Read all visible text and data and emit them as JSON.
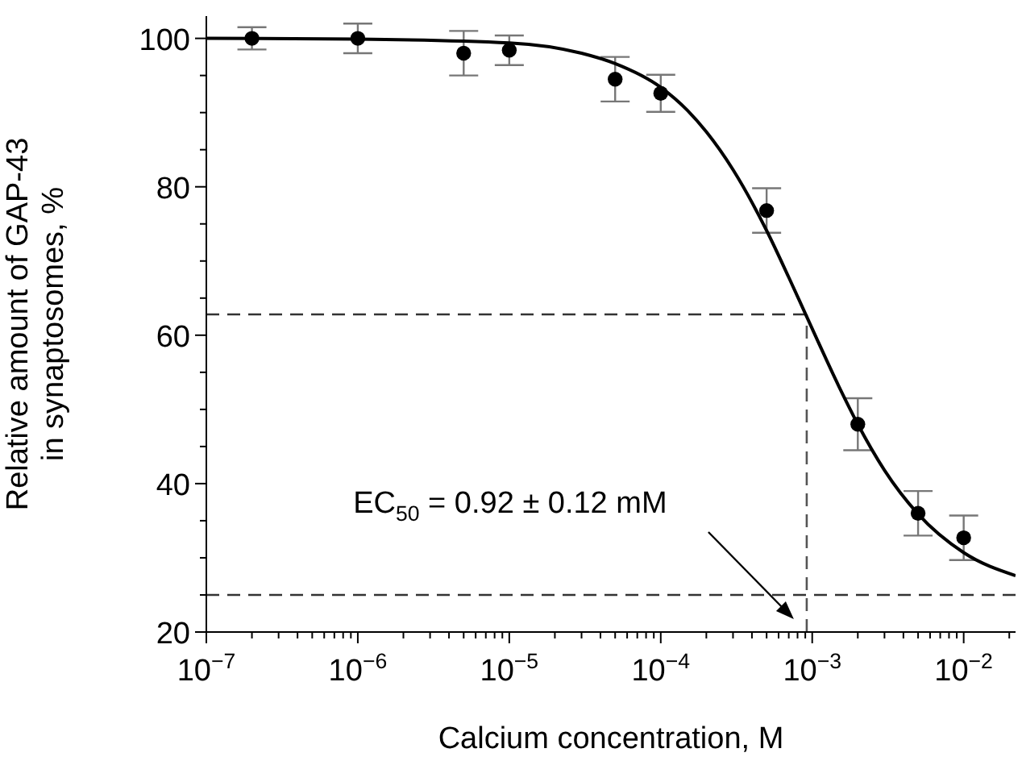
{
  "chart_data": {
    "type": "scatter",
    "xlabel": "Calcium concentration, M",
    "ylabel": "Relative amount of GAP-43\nin synaptosomes, %",
    "log": "x",
    "marker": "circle",
    "xlim": [
      1e-07,
      0.022
    ],
    "ylim": [
      20,
      103
    ],
    "xticks": [
      {
        "value": 1e-07,
        "label": "10$^{−7}$"
      },
      {
        "value": 2e-07,
        "label": null
      },
      {
        "value": 3e-07,
        "label": null
      },
      {
        "value": 4e-07,
        "label": null
      },
      {
        "value": 5e-07,
        "label": null
      },
      {
        "value": 6e-07,
        "label": null
      },
      {
        "value": 7e-07,
        "label": null
      },
      {
        "value": 8e-07,
        "label": null
      },
      {
        "value": 9e-07,
        "label": null
      },
      {
        "value": 1e-06,
        "label": "10$^{−6}$"
      },
      {
        "value": 2e-06,
        "label": null
      },
      {
        "value": 3e-06,
        "label": null
      },
      {
        "value": 4e-06,
        "label": null
      },
      {
        "value": 5e-06,
        "label": null
      },
      {
        "value": 6e-06,
        "label": null
      },
      {
        "value": 7e-06,
        "label": null
      },
      {
        "value": 8e-06,
        "label": null
      },
      {
        "value": 9e-06,
        "label": null
      },
      {
        "value": 1e-05,
        "label": "10$^{−5}$"
      },
      {
        "value": 2e-05,
        "label": null
      },
      {
        "value": 3e-05,
        "label": null
      },
      {
        "value": 4e-05,
        "label": null
      },
      {
        "value": 5e-05,
        "label": null
      },
      {
        "value": 6e-05,
        "label": null
      },
      {
        "value": 7e-05,
        "label": null
      },
      {
        "value": 8e-05,
        "label": null
      },
      {
        "value": 9e-05,
        "label": null
      },
      {
        "value": 0.0001,
        "label": "10$^{−4}$"
      },
      {
        "value": 0.0002,
        "label": null
      },
      {
        "value": 0.0003,
        "label": null
      },
      {
        "value": 0.0004,
        "label": null
      },
      {
        "value": 0.0005,
        "label": null
      },
      {
        "value": 0.0006,
        "label": null
      },
      {
        "value": 0.0007,
        "label": null
      },
      {
        "value": 0.0008,
        "label": null
      },
      {
        "value": 0.0009,
        "label": null
      },
      {
        "value": 0.001,
        "label": "10$^{−3}$"
      },
      {
        "value": 0.002,
        "label": null
      },
      {
        "value": 0.003,
        "label": null
      },
      {
        "value": 0.004,
        "label": null
      },
      {
        "value": 0.005,
        "label": null
      },
      {
        "value": 0.006,
        "label": null
      },
      {
        "value": 0.007,
        "label": null
      },
      {
        "value": 0.008,
        "label": null
      },
      {
        "value": 0.009,
        "label": null
      },
      {
        "value": 0.01,
        "label": "10$^{−2}$"
      },
      {
        "value": 0.02,
        "label": null
      }
    ],
    "yticks": [
      20,
      {
        "value": 25,
        "label": null
      },
      {
        "value": 30,
        "label": null
      },
      {
        "value": 35,
        "label": null
      },
      40,
      {
        "value": 45,
        "label": null
      },
      {
        "value": 50,
        "label": null
      },
      {
        "value": 55,
        "label": null
      },
      60,
      {
        "value": 65,
        "label": null
      },
      {
        "value": 70,
        "label": null
      },
      {
        "value": 75,
        "label": null
      },
      80,
      {
        "value": 85,
        "label": null
      },
      {
        "value": 90,
        "label": null
      },
      {
        "value": 95,
        "label": null
      },
      100
    ],
    "series": [
      {
        "color": "#000000",
        "x": [
          2e-07,
          1e-06,
          5e-06,
          1e-05,
          5e-05,
          0.0001,
          0.0005,
          0.002,
          0.005,
          0.01
        ],
        "values": [
          100,
          100,
          98,
          98.4,
          94.5,
          92.6,
          76.8,
          48,
          36,
          32.7
        ],
        "errors": [
          1.5,
          2,
          3,
          2,
          3,
          2.5,
          3,
          3.5,
          3,
          3
        ]
      },
      {
        "type": "line",
        "color": "#000000",
        "marker": "none",
        "x": [
          1e-07,
          1e-06,
          1e-05,
          3e-05,
          5e-05,
          0.0001,
          0.00015,
          0.0002,
          0.0003,
          0.0005,
          0.0007,
          0.00092,
          0.0015,
          0.002,
          0.003,
          0.005,
          0.01,
          0.022
        ],
        "values": [
          100,
          99.9,
          99.4,
          98,
          96.6,
          93.4,
          90.3,
          87.4,
          82.3,
          74.1,
          67.8,
          62.5,
          53.1,
          48,
          41.8,
          35.9,
          30.7,
          27.6
        ]
      }
    ],
    "ref_lines": [
      {
        "axis": "y",
        "value": 62.8,
        "color": "#333333",
        "line_style": "dashed"
      },
      {
        "axis": "y",
        "value": 25,
        "color": "#333333",
        "line_style": "dashed"
      },
      {
        "axis": "x",
        "value": 0.00092,
        "color": "#555555",
        "line_style": "dashed"
      }
    ],
    "annotations": [
      "EC$_{50}$ = 0.92 ± 0.12 mM"
    ]
  }
}
